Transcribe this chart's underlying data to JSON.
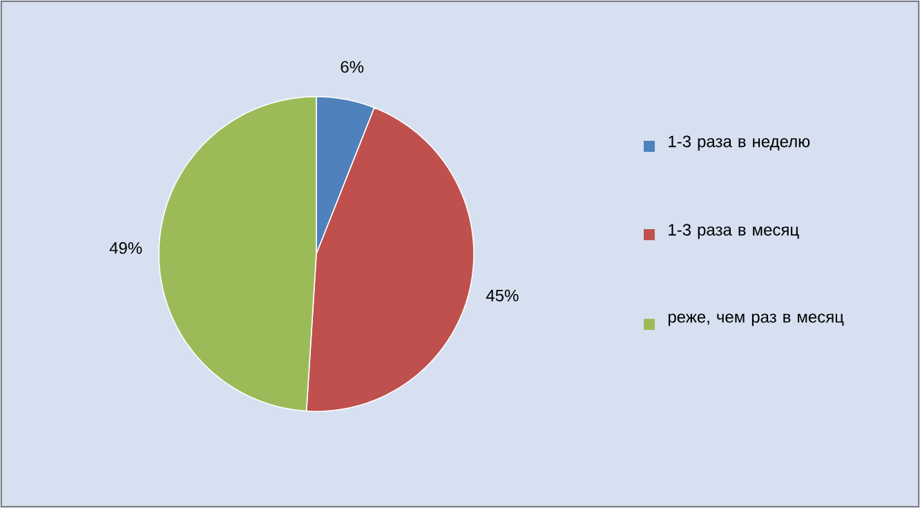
{
  "chart_data": {
    "type": "pie",
    "categories": [
      "1-3 раза в неделю",
      "1-3 раза в месяц",
      "реже, чем раз в месяц"
    ],
    "values": [
      6,
      45,
      49
    ],
    "colors": [
      "#4f81bd",
      "#c0504d",
      "#9bbb59"
    ],
    "value_labels": [
      "6%",
      "45%",
      "49%"
    ],
    "legend": "right"
  }
}
